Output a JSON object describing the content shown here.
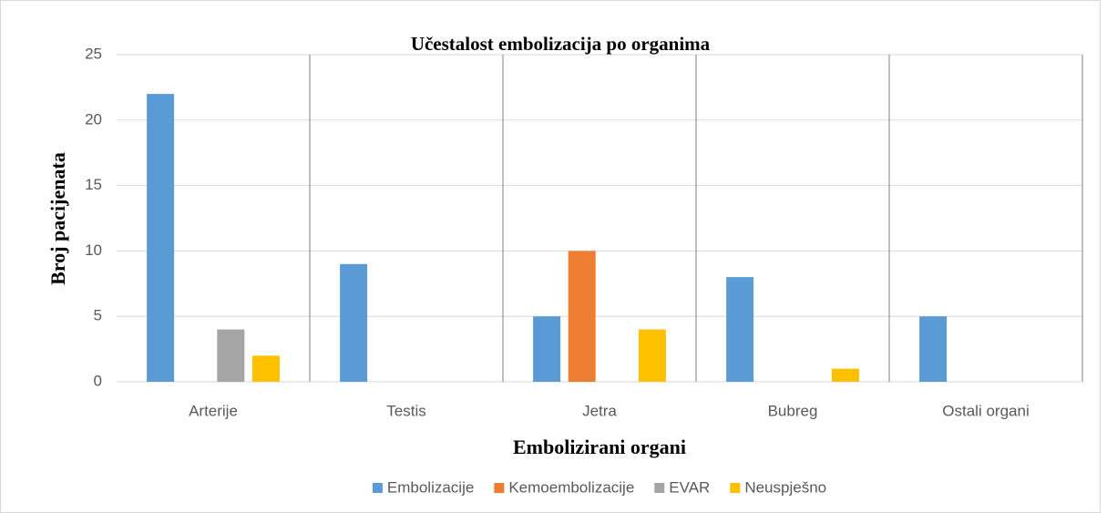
{
  "chart_data": {
    "type": "bar",
    "title": "Učestalost embolizacija po organima",
    "x_label": "Embolizirani organi",
    "y_label": "Broj pacijenata",
    "categories": [
      "Arterije",
      "Testis",
      "Jetra",
      "Bubreg",
      "Ostali organi"
    ],
    "series": [
      {
        "name": "Embolizacije",
        "color": "#5b9bd5",
        "values": [
          22,
          9,
          5,
          8,
          5
        ]
      },
      {
        "name": "Kemoembolizacije",
        "color": "#ed7d31",
        "values": [
          0,
          0,
          10,
          0,
          0
        ]
      },
      {
        "name": "EVAR",
        "color": "#a5a5a5",
        "values": [
          4,
          0,
          0,
          0,
          0
        ]
      },
      {
        "name": "Neuspješno",
        "color": "#ffc000",
        "values": [
          2,
          0,
          4,
          1,
          0
        ]
      }
    ],
    "ylim": [
      0,
      25
    ],
    "yticks": [
      0,
      5,
      10,
      15,
      20,
      25
    ],
    "grid": true,
    "legend": "bottom"
  }
}
